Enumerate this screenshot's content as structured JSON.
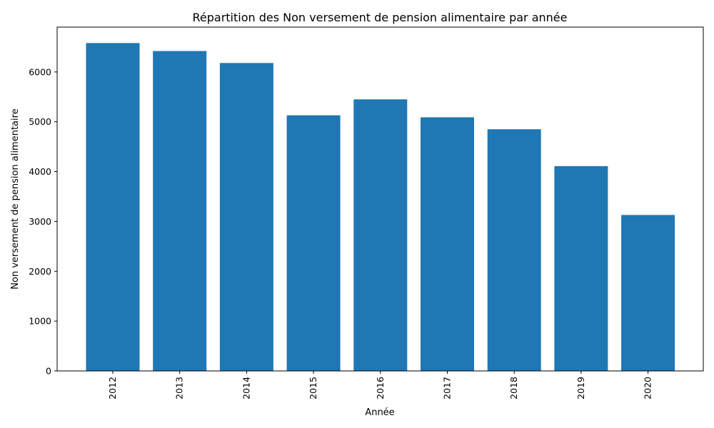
{
  "chart_data": {
    "type": "bar",
    "title": "Répartition des Non versement de pension alimentaire par année",
    "xlabel": "Année",
    "ylabel": "Non versement de pension alimentaire",
    "categories": [
      "2012",
      "2013",
      "2014",
      "2015",
      "2016",
      "2017",
      "2018",
      "2019",
      "2020"
    ],
    "values": [
      6580,
      6420,
      6180,
      5130,
      5450,
      5090,
      4850,
      4110,
      3130
    ],
    "ylim": [
      0,
      6900
    ],
    "yticks": [
      0,
      1000,
      2000,
      3000,
      4000,
      5000,
      6000
    ],
    "grid": false,
    "legend": "none",
    "bar_color": "#1f77b4"
  }
}
